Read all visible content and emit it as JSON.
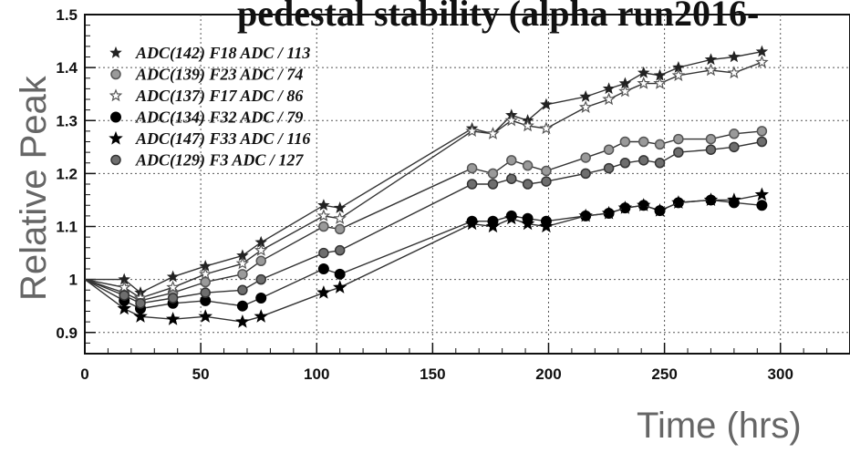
{
  "chart_data": {
    "type": "line",
    "title": "pedestal stability (alpha run2016-",
    "xlabel": "Time (hrs)",
    "ylabel": "Relative Peak",
    "xlim": [
      0,
      330
    ],
    "ylim": [
      0.86,
      1.5
    ],
    "xticks": [
      0,
      50,
      100,
      150,
      200,
      250,
      300
    ],
    "yticks": [
      0.9,
      1,
      1.1,
      1.2,
      1.3,
      1.4,
      1.5
    ],
    "ytick_labels": [
      "0.9",
      "1",
      "1.1",
      "1.2",
      "1.3",
      "1.4",
      "1.5"
    ],
    "grid": true,
    "legend_position": "top-left",
    "series": [
      {
        "name": "ADC(142) F18 ADC / 113",
        "marker": "star",
        "x": [
          0,
          17,
          24,
          38,
          52,
          68,
          76,
          103,
          110,
          167,
          176,
          184,
          191,
          199,
          216,
          226,
          233,
          241,
          248,
          256,
          270,
          280,
          292
        ],
        "y": [
          1.0,
          1.0,
          0.975,
          1.005,
          1.025,
          1.045,
          1.07,
          1.14,
          1.135,
          1.285,
          1.275,
          1.31,
          1.3,
          1.33,
          1.345,
          1.36,
          1.37,
          1.39,
          1.385,
          1.4,
          1.415,
          1.42,
          1.43
        ]
      },
      {
        "name": "ADC(139) F23 ADC / 74",
        "marker": "circle-hatched",
        "x": [
          0,
          17,
          24,
          38,
          52,
          68,
          76,
          103,
          110,
          167,
          176,
          184,
          191,
          199,
          216,
          226,
          233,
          241,
          248,
          256,
          270,
          280,
          292
        ],
        "y": [
          1.0,
          0.975,
          0.96,
          0.975,
          0.995,
          1.01,
          1.035,
          1.1,
          1.095,
          1.21,
          1.2,
          1.225,
          1.215,
          1.205,
          1.23,
          1.245,
          1.26,
          1.26,
          1.255,
          1.265,
          1.265,
          1.275,
          1.28
        ]
      },
      {
        "name": "ADC(137) F17 ADC / 86",
        "marker": "star-open",
        "x": [
          0,
          17,
          24,
          38,
          52,
          68,
          76,
          103,
          110,
          167,
          176,
          184,
          191,
          199,
          216,
          226,
          233,
          241,
          248,
          256,
          270,
          280,
          292
        ],
        "y": [
          1.0,
          0.985,
          0.965,
          0.985,
          1.01,
          1.03,
          1.055,
          1.12,
          1.115,
          1.28,
          1.275,
          1.3,
          1.29,
          1.285,
          1.325,
          1.34,
          1.355,
          1.37,
          1.37,
          1.385,
          1.395,
          1.39,
          1.41
        ]
      },
      {
        "name": "ADC(134) F32 ADC / 79",
        "marker": "circle",
        "x": [
          0,
          17,
          24,
          38,
          52,
          68,
          76,
          103,
          110,
          167,
          176,
          184,
          191,
          199,
          216,
          226,
          233,
          241,
          248,
          256,
          270,
          280,
          292
        ],
        "y": [
          1.0,
          0.96,
          0.945,
          0.955,
          0.96,
          0.95,
          0.965,
          1.02,
          1.01,
          1.11,
          1.11,
          1.12,
          1.115,
          1.11,
          1.12,
          1.125,
          1.135,
          1.14,
          1.13,
          1.145,
          1.15,
          1.145,
          1.14
        ]
      },
      {
        "name": "ADC(147) F33 ADC / 116",
        "marker": "star-filled",
        "x": [
          0,
          17,
          24,
          38,
          52,
          68,
          76,
          103,
          110,
          167,
          176,
          184,
          191,
          199,
          216,
          226,
          233,
          241,
          248,
          256,
          270,
          280,
          292
        ],
        "y": [
          1.0,
          0.945,
          0.93,
          0.925,
          0.93,
          0.92,
          0.93,
          0.975,
          0.985,
          1.105,
          1.1,
          1.115,
          1.105,
          1.1,
          1.12,
          1.125,
          1.135,
          1.14,
          1.13,
          1.145,
          1.15,
          1.15,
          1.16
        ]
      },
      {
        "name": "ADC(129) F3 ADC / 127",
        "marker": "circle-hatched-dark",
        "x": [
          0,
          17,
          24,
          38,
          52,
          68,
          76,
          103,
          110,
          167,
          176,
          184,
          191,
          199,
          216,
          226,
          233,
          241,
          248,
          256,
          270,
          280,
          292
        ],
        "y": [
          1.0,
          0.97,
          0.955,
          0.965,
          0.975,
          0.98,
          1.0,
          1.05,
          1.055,
          1.18,
          1.18,
          1.19,
          1.18,
          1.185,
          1.2,
          1.21,
          1.22,
          1.225,
          1.22,
          1.24,
          1.245,
          1.25,
          1.26
        ]
      }
    ]
  }
}
